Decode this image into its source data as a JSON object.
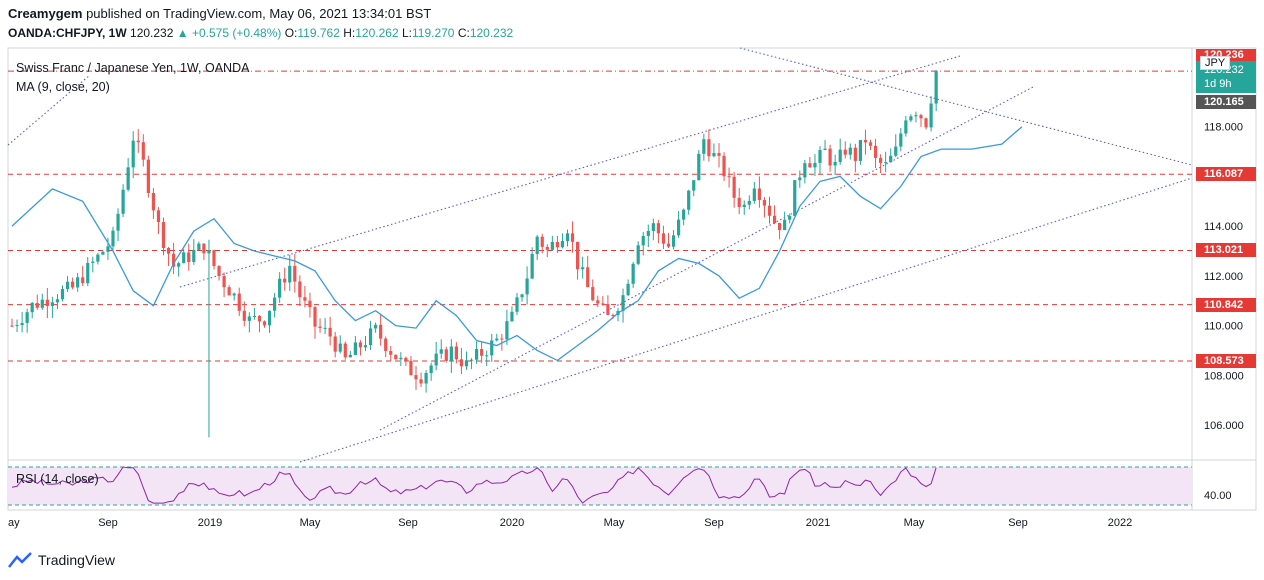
{
  "header": {
    "author": "Creamygem",
    "published": "published on TradingView.com, May 06, 2021 13:34:01 BST",
    "symbol": "OANDA:CHFJPY, 1W",
    "last": "120.232",
    "change": "▲ +0.575 (+0.48%)",
    "o_label": "O:",
    "o": "119.762",
    "h_label": "H:",
    "h": "120.262",
    "l_label": "L:",
    "l": "119.270",
    "c_label": "C:",
    "c": "120.232"
  },
  "legend": {
    "title": "Swiss Franc / Japanese Yen, 1W, OANDA",
    "ma": "MA (9, close, 20)",
    "rsi": "RSI (14, close)"
  },
  "price_tag": {
    "currency": "JPY",
    "last": "120.232",
    "countdown": "1d 9h",
    "ma_value": "120.165",
    "top_level": "120.236"
  },
  "brand": {
    "name": "TradingView"
  },
  "colors": {
    "up": "#26a69a",
    "down": "#ef5350",
    "ma": "#3a9ad9",
    "level": "#e53935",
    "trend": "#5b5bd6",
    "rsi": "#8e24aa",
    "rsi_band": "#f3e5f5"
  },
  "chart_data": {
    "type": "candlestick",
    "symbol": "CHFJPY",
    "timeframe": "1W",
    "y_ticks": [
      "118.000",
      "116.000",
      "114.000",
      "112.000",
      "110.000",
      "108.000",
      "106.000"
    ],
    "ylim": [
      104.8,
      121.2
    ],
    "x_ticks": [
      "ay",
      "Sep",
      "2019",
      "May",
      "Sep",
      "2020",
      "May",
      "Sep",
      "2021",
      "May",
      "Sep",
      "2022"
    ],
    "horizontal_levels": [
      {
        "value": 120.236,
        "label": "120.236"
      },
      {
        "value": 116.087,
        "label": "116.087"
      },
      {
        "value": 113.021,
        "label": "113.021"
      },
      {
        "value": 110.842,
        "label": "110.842"
      },
      {
        "value": 108.573,
        "label": "108.573"
      }
    ],
    "close_path": [
      [
        0,
        110.0
      ],
      [
        4,
        110.8
      ],
      [
        8,
        111.2
      ],
      [
        12,
        111.5
      ],
      [
        16,
        112.5
      ],
      [
        20,
        113.5
      ],
      [
        22,
        115.5
      ],
      [
        24,
        117.6
      ],
      [
        26,
        116.5
      ],
      [
        29,
        114.0
      ],
      [
        32,
        112.4
      ],
      [
        35,
        112.8
      ],
      [
        38,
        113.2
      ],
      [
        41,
        112.0
      ],
      [
        44,
        111.2
      ],
      [
        47,
        110.2
      ],
      [
        50,
        110.3
      ],
      [
        53,
        111.6
      ],
      [
        55,
        112.4
      ],
      [
        57,
        111.2
      ],
      [
        60,
        110.0
      ],
      [
        63,
        109.6
      ],
      [
        66,
        108.6
      ],
      [
        69,
        109.2
      ],
      [
        72,
        109.8
      ],
      [
        75,
        109.0
      ],
      [
        78,
        108.3
      ],
      [
        81,
        108.0
      ],
      [
        84,
        108.6
      ],
      [
        87,
        109.0
      ],
      [
        90,
        108.4
      ],
      [
        93,
        108.9
      ],
      [
        96,
        109.4
      ],
      [
        99,
        110.3
      ],
      [
        102,
        112.0
      ],
      [
        104,
        113.6
      ],
      [
        106,
        113.0
      ],
      [
        108,
        113.5
      ],
      [
        110,
        114.0
      ],
      [
        112,
        112.5
      ],
      [
        114,
        111.5
      ],
      [
        116,
        110.8
      ],
      [
        118,
        110.3
      ],
      [
        121,
        111.2
      ],
      [
        124,
        113.5
      ],
      [
        127,
        114.0
      ],
      [
        130,
        113.2
      ],
      [
        133,
        114.5
      ],
      [
        135,
        116.0
      ],
      [
        137,
        117.5
      ],
      [
        139,
        116.8
      ],
      [
        141,
        116.2
      ],
      [
        143,
        115.2
      ],
      [
        145,
        114.8
      ],
      [
        147,
        115.8
      ],
      [
        149,
        115.0
      ],
      [
        151,
        114.2
      ],
      [
        153,
        114.0
      ],
      [
        155,
        115.5
      ],
      [
        157,
        116.8
      ],
      [
        159,
        116.5
      ],
      [
        161,
        117.0
      ],
      [
        163,
        116.4
      ],
      [
        165,
        117.1
      ],
      [
        167,
        116.8
      ],
      [
        169,
        117.5
      ],
      [
        171,
        116.6
      ],
      [
        173,
        116.4
      ],
      [
        175,
        117.0
      ],
      [
        177,
        118.5
      ],
      [
        179,
        118.7
      ],
      [
        181,
        118.2
      ],
      [
        183,
        120.232
      ]
    ],
    "ma_path": [
      [
        0,
        114.0
      ],
      [
        8,
        115.5
      ],
      [
        14,
        115.0
      ],
      [
        20,
        113.0
      ],
      [
        24,
        111.4
      ],
      [
        28,
        110.8
      ],
      [
        32,
        112.5
      ],
      [
        36,
        113.8
      ],
      [
        40,
        114.3
      ],
      [
        44,
        113.3
      ],
      [
        48,
        113.0
      ],
      [
        52,
        112.8
      ],
      [
        56,
        112.6
      ],
      [
        60,
        112.2
      ],
      [
        64,
        111.0
      ],
      [
        68,
        110.2
      ],
      [
        72,
        110.6
      ],
      [
        76,
        110.0
      ],
      [
        80,
        109.9
      ],
      [
        84,
        111.0
      ],
      [
        88,
        110.4
      ],
      [
        92,
        109.4
      ],
      [
        96,
        109.2
      ],
      [
        100,
        109.6
      ],
      [
        104,
        109.0
      ],
      [
        108,
        108.6
      ],
      [
        112,
        109.2
      ],
      [
        116,
        109.8
      ],
      [
        120,
        110.5
      ],
      [
        124,
        111.0
      ],
      [
        128,
        112.2
      ],
      [
        132,
        112.7
      ],
      [
        136,
        112.5
      ],
      [
        140,
        112.0
      ],
      [
        144,
        111.1
      ],
      [
        148,
        111.5
      ],
      [
        152,
        113.0
      ],
      [
        156,
        114.8
      ],
      [
        160,
        115.8
      ],
      [
        164,
        116.0
      ],
      [
        168,
        115.2
      ],
      [
        172,
        114.7
      ],
      [
        176,
        115.6
      ],
      [
        180,
        116.8
      ],
      [
        184,
        117.1
      ],
      [
        190,
        117.1
      ],
      [
        196,
        117.3
      ],
      [
        200,
        118.0
      ]
    ],
    "rsi": {
      "label": "RSI (14, close)",
      "tick": "40.00",
      "band": [
        30,
        70
      ]
    }
  }
}
